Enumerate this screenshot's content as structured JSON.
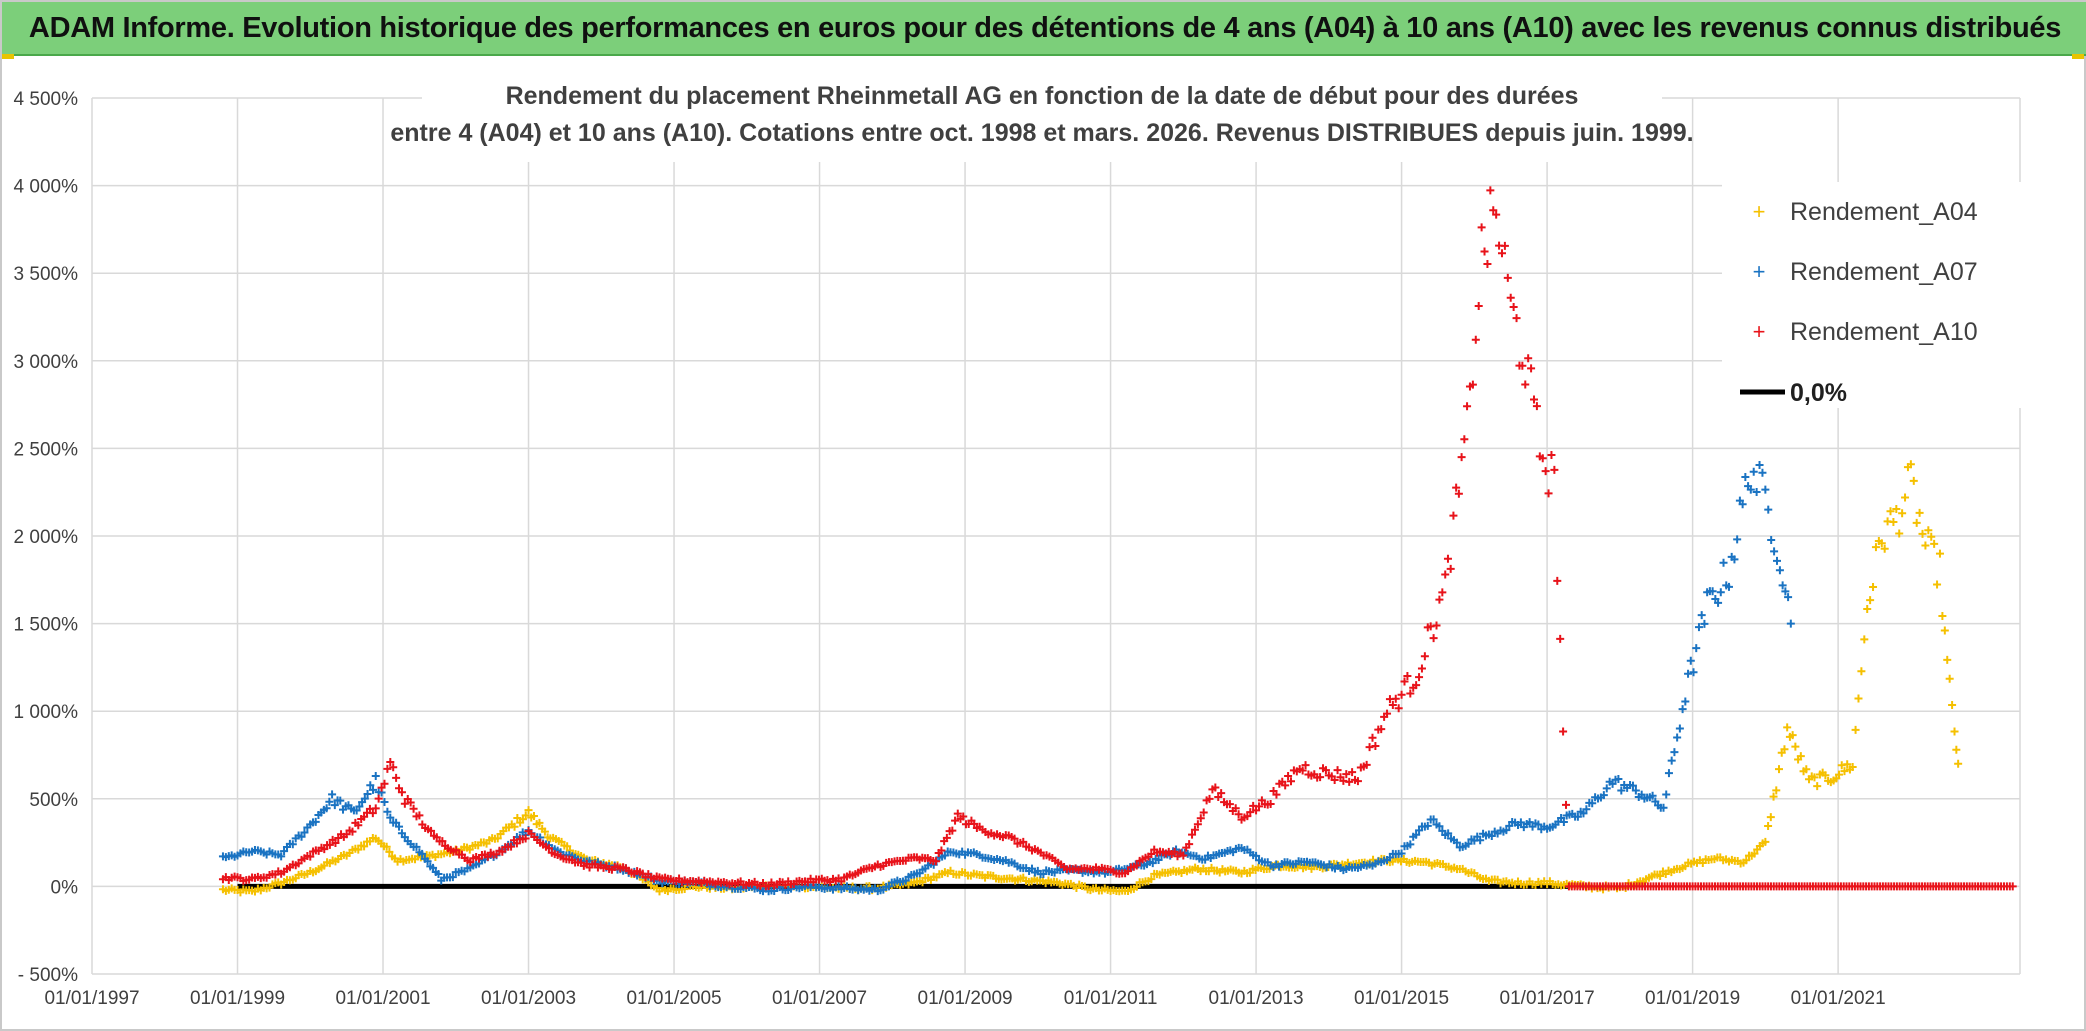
{
  "banner": {
    "text": "ADAM Informe. Evolution historique des performances en euros pour des détentions de 4 ans (A04) à 10 ans (A10) avec les revenus connus distribués"
  },
  "colors": {
    "banner_bg": "#7ccf7a",
    "A04": "#f5c000",
    "A07": "#1a73c2",
    "A10": "#e8131a",
    "zero": "#000000",
    "grid": "#d9d9d9"
  },
  "chart_data": {
    "type": "scatter",
    "title_lines": [
      "Rendement du placement Rheinmetall AG en fonction de la date de début pour des durées",
      "entre 4 (A04) et 10 ans (A10). Cotations entre oct. 1998 et mars. 2026. Revenus DISTRIBUES depuis juin. 1999."
    ],
    "xlabel": "",
    "ylabel": "",
    "x_ticks": [
      "01/01/1997",
      "01/01/1999",
      "01/01/2001",
      "01/01/2003",
      "01/01/2005",
      "01/01/2007",
      "01/01/2009",
      "01/01/2011",
      "01/01/2013",
      "01/01/2015",
      "01/01/2017",
      "01/01/2019",
      "01/01/2021"
    ],
    "x_range": [
      1997.0,
      2023.5
    ],
    "y_ticks": [
      "- 500%",
      "0%",
      "500%",
      "1 000%",
      "1 500%",
      "2 000%",
      "2 500%",
      "3 000%",
      "3 500%",
      "4 000%",
      "4 500%"
    ],
    "y_range": [
      -500,
      4500
    ],
    "legend": {
      "position": "top-right",
      "entries": [
        "Rendement_A04",
        "Rendement_A07",
        "Rendement_A10",
        "0,0%"
      ]
    },
    "series": [
      {
        "name": "Rendement_A04",
        "key": "A04",
        "points": [
          [
            1998.8,
            -20
          ],
          [
            1999.2,
            -30
          ],
          [
            1999.6,
            20
          ],
          [
            2000.0,
            80
          ],
          [
            2000.5,
            180
          ],
          [
            2000.9,
            280
          ],
          [
            2001.2,
            150
          ],
          [
            2001.6,
            170
          ],
          [
            2002.0,
            200
          ],
          [
            2002.5,
            260
          ],
          [
            2003.0,
            420
          ],
          [
            2003.3,
            280
          ],
          [
            2003.8,
            150
          ],
          [
            2004.3,
            110
          ],
          [
            2004.8,
            -20
          ],
          [
            2005.3,
            0
          ],
          [
            2005.8,
            -10
          ],
          [
            2006.3,
            0
          ],
          [
            2006.8,
            0
          ],
          [
            2007.3,
            -10
          ],
          [
            2007.8,
            -10
          ],
          [
            2008.3,
            20
          ],
          [
            2008.8,
            80
          ],
          [
            2009.2,
            60
          ],
          [
            2009.8,
            40
          ],
          [
            2010.3,
            20
          ],
          [
            2010.8,
            -20
          ],
          [
            2011.2,
            -30
          ],
          [
            2011.6,
            60
          ],
          [
            2012.2,
            100
          ],
          [
            2012.8,
            80
          ],
          [
            2013.3,
            120
          ],
          [
            2013.8,
            110
          ],
          [
            2014.3,
            130
          ],
          [
            2014.8,
            150
          ],
          [
            2015.3,
            140
          ],
          [
            2015.8,
            100
          ],
          [
            2016.2,
            30
          ],
          [
            2016.6,
            20
          ],
          [
            2017.0,
            20
          ],
          [
            2017.5,
            0
          ],
          [
            2018.0,
            -10
          ],
          [
            2018.4,
            50
          ],
          [
            2018.9,
            120
          ],
          [
            2019.3,
            160
          ],
          [
            2019.7,
            140
          ],
          [
            2020.0,
            250
          ],
          [
            2020.3,
            900
          ],
          [
            2020.6,
            600
          ],
          [
            2020.9,
            620
          ],
          [
            2021.2,
            700
          ],
          [
            2021.4,
            1600
          ],
          [
            2021.6,
            2000
          ],
          [
            2021.8,
            2100
          ],
          [
            2022.0,
            2300
          ],
          [
            2022.2,
            1950
          ],
          [
            2022.4,
            1800
          ],
          [
            2022.5,
            1250
          ],
          [
            2022.6,
            900
          ],
          [
            2022.65,
            700
          ]
        ]
      },
      {
        "name": "Rendement_A07",
        "key": "A07",
        "points": [
          [
            1998.8,
            160
          ],
          [
            1999.2,
            200
          ],
          [
            1999.6,
            180
          ],
          [
            2000.0,
            350
          ],
          [
            2000.3,
            500
          ],
          [
            2000.6,
            420
          ],
          [
            2000.9,
            600
          ],
          [
            2001.1,
            380
          ],
          [
            2001.5,
            200
          ],
          [
            2001.8,
            40
          ],
          [
            2002.2,
            100
          ],
          [
            2002.6,
            200
          ],
          [
            2003.0,
            320
          ],
          [
            2003.4,
            200
          ],
          [
            2003.8,
            140
          ],
          [
            2004.3,
            100
          ],
          [
            2004.8,
            30
          ],
          [
            2005.3,
            20
          ],
          [
            2005.8,
            0
          ],
          [
            2006.3,
            -20
          ],
          [
            2006.8,
            0
          ],
          [
            2007.3,
            -10
          ],
          [
            2007.8,
            -20
          ],
          [
            2008.3,
            60
          ],
          [
            2008.8,
            200
          ],
          [
            2009.2,
            180
          ],
          [
            2009.6,
            140
          ],
          [
            2010.0,
            80
          ],
          [
            2010.5,
            90
          ],
          [
            2011.0,
            80
          ],
          [
            2011.5,
            130
          ],
          [
            2011.9,
            200
          ],
          [
            2012.3,
            160
          ],
          [
            2012.8,
            220
          ],
          [
            2013.2,
            120
          ],
          [
            2013.7,
            140
          ],
          [
            2014.2,
            100
          ],
          [
            2014.6,
            120
          ],
          [
            2015.0,
            200
          ],
          [
            2015.4,
            380
          ],
          [
            2015.8,
            230
          ],
          [
            2016.2,
            300
          ],
          [
            2016.6,
            360
          ],
          [
            2017.0,
            340
          ],
          [
            2017.5,
            420
          ],
          [
            2017.9,
            600
          ],
          [
            2018.3,
            530
          ],
          [
            2018.6,
            450
          ],
          [
            2018.9,
            1100
          ],
          [
            2019.2,
            1600
          ],
          [
            2019.5,
            1800
          ],
          [
            2019.8,
            2400
          ],
          [
            2020.0,
            2200
          ],
          [
            2020.2,
            1900
          ],
          [
            2020.35,
            1500
          ]
        ]
      },
      {
        "name": "Rendement_A10",
        "key": "A10",
        "points": [
          [
            1998.8,
            50
          ],
          [
            1999.2,
            40
          ],
          [
            1999.6,
            80
          ],
          [
            2000.0,
            180
          ],
          [
            2000.5,
            300
          ],
          [
            2000.9,
            450
          ],
          [
            2001.1,
            700
          ],
          [
            2001.3,
            500
          ],
          [
            2001.7,
            280
          ],
          [
            2002.2,
            150
          ],
          [
            2002.6,
            200
          ],
          [
            2003.0,
            300
          ],
          [
            2003.4,
            180
          ],
          [
            2003.8,
            120
          ],
          [
            2004.3,
            100
          ],
          [
            2004.8,
            40
          ],
          [
            2005.3,
            30
          ],
          [
            2005.8,
            20
          ],
          [
            2006.3,
            10
          ],
          [
            2006.8,
            30
          ],
          [
            2007.3,
            40
          ],
          [
            2007.8,
            120
          ],
          [
            2008.3,
            160
          ],
          [
            2008.6,
            150
          ],
          [
            2008.9,
            400
          ],
          [
            2009.2,
            330
          ],
          [
            2009.6,
            280
          ],
          [
            2010.0,
            200
          ],
          [
            2010.4,
            100
          ],
          [
            2010.8,
            100
          ],
          [
            2011.2,
            80
          ],
          [
            2011.6,
            200
          ],
          [
            2012.0,
            180
          ],
          [
            2012.4,
            550
          ],
          [
            2012.8,
            400
          ],
          [
            2013.2,
            500
          ],
          [
            2013.6,
            680
          ],
          [
            2014.0,
            640
          ],
          [
            2014.4,
            620
          ],
          [
            2014.8,
            1000
          ],
          [
            2015.2,
            1200
          ],
          [
            2015.6,
            1700
          ],
          [
            2015.9,
            2600
          ],
          [
            2016.1,
            3600
          ],
          [
            2016.3,
            3850
          ],
          [
            2016.5,
            3300
          ],
          [
            2016.7,
            3000
          ],
          [
            2016.9,
            2500
          ],
          [
            2017.1,
            2300
          ],
          [
            2017.3,
            0
          ],
          [
            2018.0,
            0
          ],
          [
            2019.0,
            0
          ],
          [
            2020.0,
            0
          ],
          [
            2021.0,
            0
          ],
          [
            2022.0,
            0
          ],
          [
            2023.0,
            0
          ],
          [
            2023.4,
            0
          ]
        ]
      }
    ],
    "zero_line": {
      "from": 1999.0,
      "to": 2017.3,
      "value": 0
    }
  }
}
